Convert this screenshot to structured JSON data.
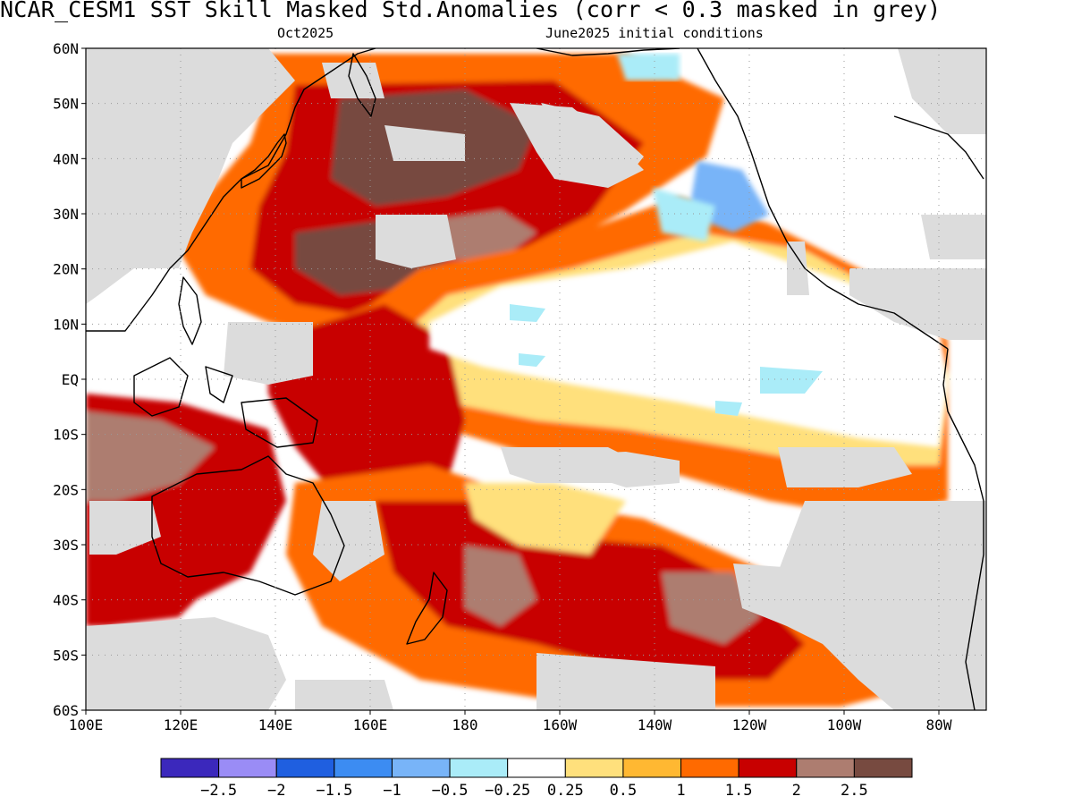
{
  "header": {
    "title": "NCAR_CESM1  SST Skill Masked Std.Anomalies (corr < 0.3 masked in grey)",
    "subtitle_left": "Oct2025",
    "subtitle_right": "June2025 initial conditions"
  },
  "map": {
    "projection": "equirectangular",
    "lon_range": [
      100,
      290
    ],
    "lat_range": [
      -60,
      60
    ],
    "lat_tick_labels": [
      "60N",
      "50N",
      "40N",
      "30N",
      "20N",
      "10N",
      "EQ",
      "10S",
      "20S",
      "30S",
      "40S",
      "50S",
      "60S"
    ],
    "lon_tick_labels": [
      "100E",
      "120E",
      "140E",
      "160E",
      "180",
      "160W",
      "140W",
      "120W",
      "100W",
      "80W"
    ],
    "grid": "dotted",
    "mask_color": "#dcdcdc",
    "land_color": "#ffffff"
  },
  "colorbar": {
    "colors": [
      "#3b28bc",
      "#9a8cf6",
      "#1f5fe0",
      "#3c8cf2",
      "#78b4f8",
      "#aaecf8",
      "#ffffff",
      "#ffe07c",
      "#ffb832",
      "#ff6a00",
      "#c80000",
      "#ad7d70",
      "#774a40"
    ],
    "labels": [
      "−2.5",
      "−2",
      "−1.5",
      "−1",
      "−0.5",
      "−0.25",
      "0.25",
      "0.5",
      "1",
      "1.5",
      "2",
      "2.5"
    ]
  }
}
